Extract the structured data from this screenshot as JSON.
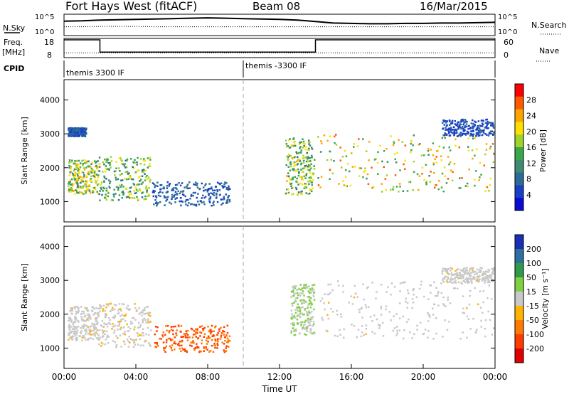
{
  "header": {
    "station": "Fort Hays West (fitACF)",
    "beam": "Beam 08",
    "date": "16/Mar/2015"
  },
  "strips": {
    "nsky_label": "N.Sky",
    "nsky_ticks": [
      "10^5",
      "10^0"
    ],
    "nsearch_label": "N.Search",
    "nsearch_ticks": [
      "10^5",
      "10^0"
    ],
    "freq_label": "Freq.",
    "freq_unit": "[MHz]",
    "freq_ticks": [
      "18",
      "8"
    ],
    "nave_label": "Nave",
    "nave_ticks": [
      "60",
      "0"
    ],
    "cpid_label": "CPID",
    "cpid_segments": [
      "themis 3300 IF",
      "themis -3300 IF"
    ]
  },
  "axes": {
    "xlabel": "Time UT",
    "x_ticks": [
      "00:00",
      "04:00",
      "08:00",
      "12:00",
      "16:00",
      "20:00",
      "00:00"
    ],
    "y_label": "Slant Range [km]",
    "y_ticks": [
      "1000",
      "2000",
      "3000",
      "4000"
    ]
  },
  "power_scale": {
    "label": "Power [dB]",
    "ticks": [
      "28",
      "24",
      "20",
      "16",
      "12",
      "8",
      "4"
    ],
    "colors": [
      "#ff0000",
      "#ff5a00",
      "#ffa500",
      "#ffe000",
      "#9fd42a",
      "#3aa84a",
      "#3f8b73",
      "#2c6c96",
      "#1a40c8",
      "#0b0bd6"
    ]
  },
  "velocity_scale": {
    "label": "Velocity [m s⁻¹]",
    "ticks": [
      "200",
      "100",
      "50",
      "15",
      "-15",
      "-50",
      "-100",
      "-200"
    ],
    "colors": [
      "#1a2fb4",
      "#2d6f9f",
      "#2f9a4a",
      "#7fd142",
      "#c8c8c8",
      "#ffb400",
      "#ff7a00",
      "#ff3c00",
      "#e00000"
    ]
  },
  "chart_data": [
    {
      "type": "line",
      "title": "N.Sky / N.Search",
      "x": [
        0,
        1,
        2,
        3,
        4,
        5,
        6,
        7,
        8,
        9,
        10,
        11,
        12,
        13,
        14,
        15,
        16,
        17,
        18,
        19,
        20,
        21,
        22,
        23,
        24
      ],
      "series": [
        {
          "name": "N.Sky",
          "values": [
            3.5,
            3.6,
            3.8,
            3.9,
            4.0,
            4.1,
            4.2,
            4.3,
            4.4,
            4.3,
            4.2,
            4.1,
            4.0,
            3.8,
            3.4,
            3.0,
            2.9,
            2.8,
            2.8,
            2.9,
            2.9,
            3.0,
            3.0,
            3.1,
            3.2
          ]
        },
        {
          "name": "N.Search",
          "values": [
            2.0,
            2.0,
            2.1,
            2.1,
            2.1,
            2.0,
            2.0,
            2.0,
            2.0,
            2.0,
            2.0,
            2.0,
            2.0,
            2.0,
            2.0,
            2.0,
            2.0,
            2.0,
            2.0,
            2.0,
            2.0,
            2.0,
            2.0,
            2.0,
            2.0
          ]
        }
      ],
      "ylim": [
        0,
        5
      ]
    },
    {
      "type": "line",
      "title": "Freq. / Nave",
      "x": [
        0,
        2,
        2,
        14,
        14,
        24
      ],
      "series": [
        {
          "name": "Freq.",
          "values": [
            18,
            18,
            10.5,
            10.5,
            18,
            18
          ]
        },
        {
          "name": "Nave",
          "values": [
            10,
            10,
            10,
            10,
            10,
            10
          ]
        }
      ],
      "ylim": [
        8,
        18
      ]
    },
    {
      "type": "heatmap",
      "title": "Power [dB]",
      "xlabel": "Time UT",
      "ylabel": "Slant Range [km]",
      "xlim": [
        0,
        24
      ],
      "ylim": [
        400,
        4600
      ],
      "zlim": [
        0,
        30
      ],
      "clusters": [
        {
          "t": [
            0.2,
            1.9
          ],
          "r": [
            1250,
            2250
          ],
          "peak_dB": 24
        },
        {
          "t": [
            1.9,
            4.8
          ],
          "r": [
            1050,
            2350
          ],
          "peak_dB": 20
        },
        {
          "t": [
            4.9,
            9.2
          ],
          "r": [
            900,
            1600
          ],
          "peak_dB": 8
        },
        {
          "t": [
            12.3,
            13.9
          ],
          "r": [
            1200,
            2900
          ],
          "peak_dB": 22
        },
        {
          "t": [
            14.1,
            23.9
          ],
          "r": [
            1300,
            3000
          ],
          "peak_dB": 28
        },
        {
          "t": [
            0.2,
            1.2
          ],
          "r": [
            2950,
            3200
          ],
          "peak_dB": 8
        },
        {
          "t": [
            21.0,
            23.9
          ],
          "r": [
            2950,
            3450
          ],
          "peak_dB": 6
        }
      ]
    },
    {
      "type": "heatmap",
      "title": "Velocity [m s⁻¹]",
      "xlabel": "Time UT",
      "ylabel": "Slant Range [km]",
      "xlim": [
        0,
        24
      ],
      "ylim": [
        400,
        4600
      ],
      "zlim": [
        -250,
        250
      ],
      "clusters": [
        {
          "t": [
            0.2,
            1.9
          ],
          "r": [
            1250,
            2250
          ],
          "vel": -5
        },
        {
          "t": [
            1.9,
            4.8
          ],
          "r": [
            1050,
            2350
          ],
          "vel": -10
        },
        {
          "t": [
            5.0,
            9.2
          ],
          "r": [
            900,
            1700
          ],
          "vel": -160
        },
        {
          "t": [
            12.6,
            13.9
          ],
          "r": [
            1400,
            2900
          ],
          "vel": 30
        },
        {
          "t": [
            14.1,
            23.9
          ],
          "r": [
            1300,
            3000
          ],
          "vel": -5
        },
        {
          "t": [
            21.0,
            23.9
          ],
          "r": [
            2950,
            3400
          ],
          "vel": -5
        }
      ]
    }
  ]
}
